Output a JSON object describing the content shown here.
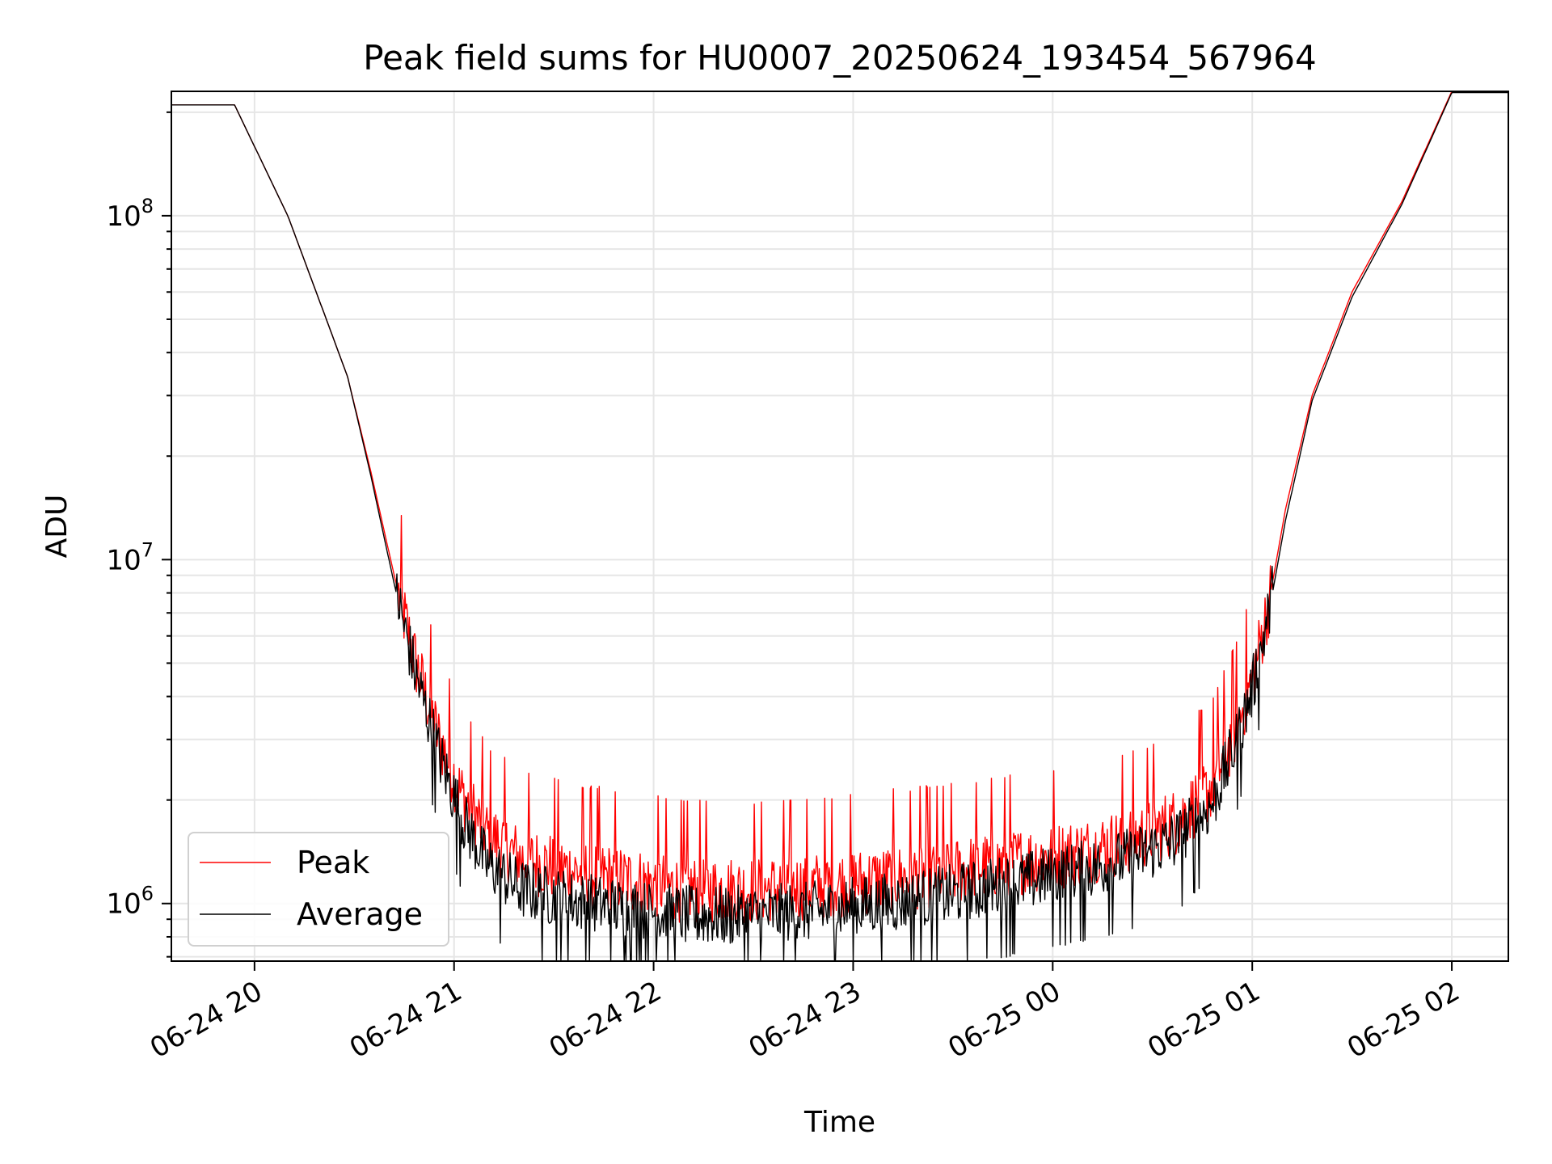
{
  "chart_data": {
    "type": "line",
    "title": "Peak field sums for HU0007_20250624_193454_567964",
    "xlabel": "Time",
    "ylabel": "ADU",
    "yscale": "log",
    "grid": true,
    "legend_placement": "lower-left",
    "x_tick_labels": [
      "06-24 20",
      "06-24 21",
      "06-24 22",
      "06-24 23",
      "06-25 00",
      "06-25 01",
      "06-25 02"
    ],
    "y_tick_labels": [
      {
        "base": "10",
        "exp": "6"
      },
      {
        "base": "10",
        "exp": "7"
      },
      {
        "base": "10",
        "exp": "8"
      }
    ],
    "xlim": [
      "2025-06-24 19:35",
      "2025-06-25 02:17"
    ],
    "ylim": [
      680000,
      230000000
    ],
    "series": [
      {
        "name": "Peak",
        "color": "#ff0000",
        "points": [
          [
            "2025-06-24 19:35",
            210000000
          ],
          [
            "2025-06-24 19:54",
            210000000
          ],
          [
            "2025-06-24 20:10",
            100000000
          ],
          [
            "2025-06-24 20:20",
            55000000
          ],
          [
            "2025-06-24 20:28",
            34000000
          ],
          [
            "2025-06-24 20:35",
            18000000
          ],
          [
            "2025-06-24 20:42",
            9000000
          ],
          [
            "2025-06-24 20:48",
            5200000
          ],
          [
            "2025-06-24 20:55",
            3100000
          ],
          [
            "2025-06-24 21:02",
            2100000
          ],
          [
            "2025-06-24 21:10",
            1600000
          ],
          [
            "2025-06-24 21:20",
            1350000
          ],
          [
            "2025-06-24 21:35",
            1250000
          ],
          [
            "2025-06-24 21:50",
            1180000
          ],
          [
            "2025-06-24 22:10",
            1100000
          ],
          [
            "2025-06-24 22:30",
            1100000
          ],
          [
            "2025-06-24 22:50",
            1130000
          ],
          [
            "2025-06-24 23:10",
            1180000
          ],
          [
            "2025-06-24 23:30",
            1240000
          ],
          [
            "2025-06-24 23:50",
            1330000
          ],
          [
            "2025-06-25 00:10",
            1420000
          ],
          [
            "2025-06-25 00:25",
            1550000
          ],
          [
            "2025-06-25 00:38",
            1750000
          ],
          [
            "2025-06-25 00:48",
            2200000
          ],
          [
            "2025-06-25 00:55",
            3200000
          ],
          [
            "2025-06-25 01:00",
            4500000
          ],
          [
            "2025-06-25 01:05",
            7500000
          ],
          [
            "2025-06-25 01:10",
            14000000
          ],
          [
            "2025-06-25 01:18",
            30000000
          ],
          [
            "2025-06-25 01:30",
            60000000
          ],
          [
            "2025-06-25 01:45",
            110000000
          ],
          [
            "2025-06-25 02:00",
            230000000
          ],
          [
            "2025-06-25 02:17",
            230000000
          ]
        ]
      },
      {
        "name": "Average",
        "color": "#000000",
        "points": [
          [
            "2025-06-24 19:35",
            210000000
          ],
          [
            "2025-06-24 19:54",
            210000000
          ],
          [
            "2025-06-24 20:10",
            100000000
          ],
          [
            "2025-06-24 20:20",
            55000000
          ],
          [
            "2025-06-24 20:28",
            34000000
          ],
          [
            "2025-06-24 20:35",
            17500000
          ],
          [
            "2025-06-24 20:42",
            8500000
          ],
          [
            "2025-06-24 20:48",
            4800000
          ],
          [
            "2025-06-24 20:55",
            2800000
          ],
          [
            "2025-06-24 21:02",
            1800000
          ],
          [
            "2025-06-24 21:10",
            1300000
          ],
          [
            "2025-06-24 21:20",
            1100000
          ],
          [
            "2025-06-24 21:35",
            1020000
          ],
          [
            "2025-06-24 21:50",
            970000
          ],
          [
            "2025-06-24 22:10",
            920000
          ],
          [
            "2025-06-24 22:30",
            920000
          ],
          [
            "2025-06-24 22:50",
            950000
          ],
          [
            "2025-06-24 23:10",
            1000000
          ],
          [
            "2025-06-24 23:30",
            1060000
          ],
          [
            "2025-06-24 23:50",
            1150000
          ],
          [
            "2025-06-25 00:10",
            1250000
          ],
          [
            "2025-06-25 00:25",
            1370000
          ],
          [
            "2025-06-25 00:38",
            1550000
          ],
          [
            "2025-06-25 00:48",
            1950000
          ],
          [
            "2025-06-25 00:55",
            2900000
          ],
          [
            "2025-06-25 01:00",
            4200000
          ],
          [
            "2025-06-25 01:05",
            7000000
          ],
          [
            "2025-06-25 01:10",
            13000000
          ],
          [
            "2025-06-25 01:18",
            29000000
          ],
          [
            "2025-06-25 01:30",
            58000000
          ],
          [
            "2025-06-25 01:45",
            108000000
          ],
          [
            "2025-06-25 02:00",
            228000000
          ],
          [
            "2025-06-25 02:17",
            228000000
          ]
        ]
      }
    ]
  }
}
